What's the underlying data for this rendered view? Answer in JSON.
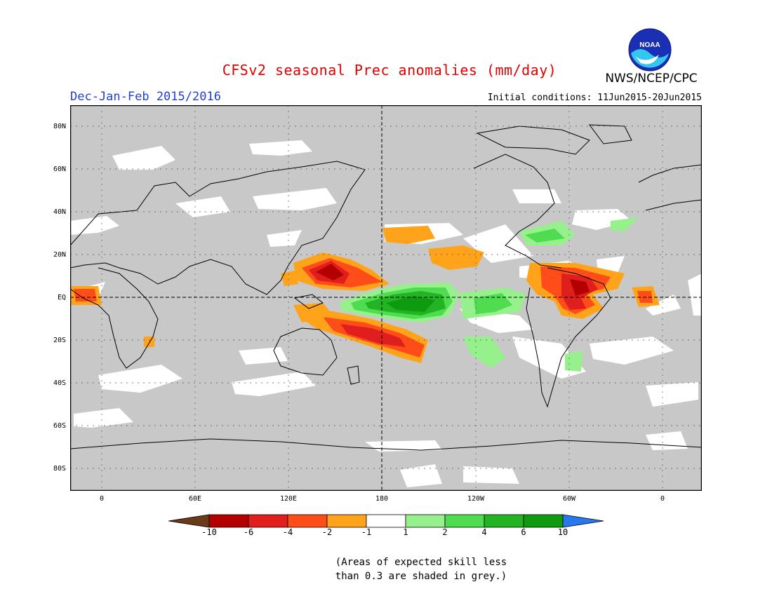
{
  "title": "CFSv2 seasonal Prec anomalies (mm/day)",
  "organization": "NWS/NCEP/CPC",
  "logo_text": "NOAA",
  "season": "Dec-Jan-Feb 2015/2016",
  "initial_conditions": "Initial conditions: 11Jun2015-20Jun2015",
  "latitude_labels": [
    "80N",
    "60N",
    "40N",
    "20N",
    "EQ",
    "20S",
    "40S",
    "60S",
    "80S"
  ],
  "longitude_labels": [
    "0",
    "60E",
    "120E",
    "180",
    "120W",
    "60W",
    "0"
  ],
  "colorbar": {
    "labels": [
      "-10",
      "-6",
      "-4",
      "-2",
      "-1",
      "1",
      "2",
      "4",
      "6",
      "10"
    ],
    "colors": [
      "#6b3a1a",
      "#b30000",
      "#e01e1e",
      "#ff4d1a",
      "#ffa31a",
      "#ffffff",
      "#96f08c",
      "#50dc50",
      "#23b423",
      "#0f9b0f",
      "#2878f0"
    ]
  },
  "note": [
    "(Areas of expected skill less",
    "than 0.3 are shaded in grey.)"
  ]
}
